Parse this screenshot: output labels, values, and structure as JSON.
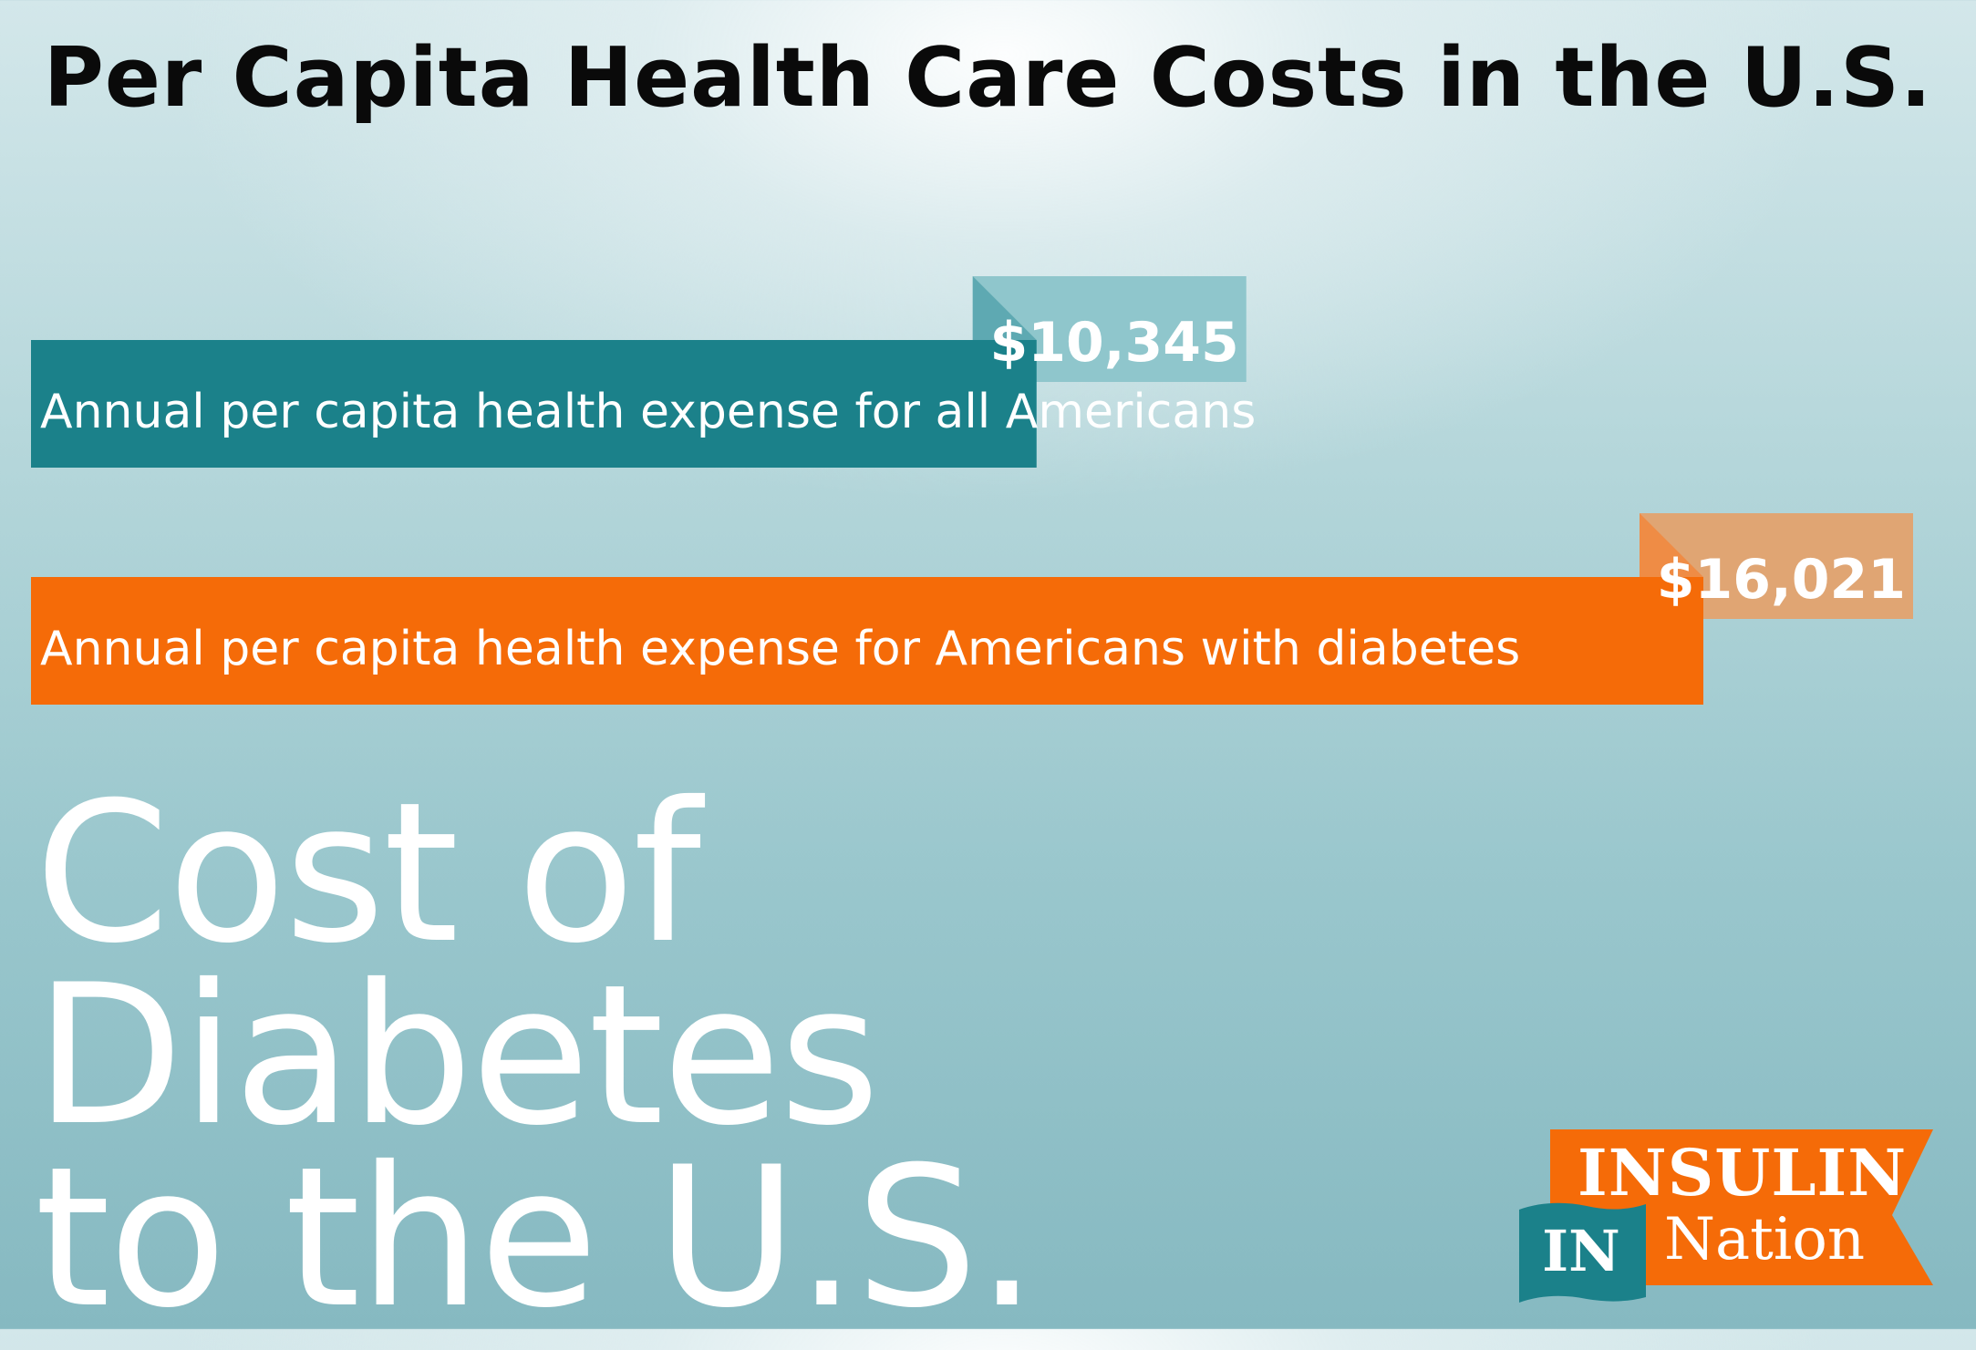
{
  "title": "Per Capita Health Care Costs in the U.S.",
  "headline": {
    "line1": "Cost of",
    "line2": "Diabetes",
    "line3": "to the U.S."
  },
  "logo": {
    "word1": "INSULIN",
    "word2": "Nation",
    "badge": "IN"
  },
  "chart_data": {
    "type": "bar",
    "orientation": "horizontal",
    "title": "Per Capita Health Care Costs in the U.S.",
    "categories": [
      "Annual per capita health expense for all Americans",
      "Annual per capita health expense for Americans with diabetes"
    ],
    "values": [
      10345,
      16021
    ],
    "value_labels": [
      "$10,345",
      "$16,021"
    ],
    "xlim": [
      0,
      16021
    ],
    "grid": false,
    "colors": {
      "bar": [
        "#1b818a",
        "#f56b08"
      ],
      "tab": [
        "#8fc6cc",
        "#e0a573"
      ],
      "fold": [
        "#5ea9b2",
        "#ef8c45"
      ]
    }
  }
}
